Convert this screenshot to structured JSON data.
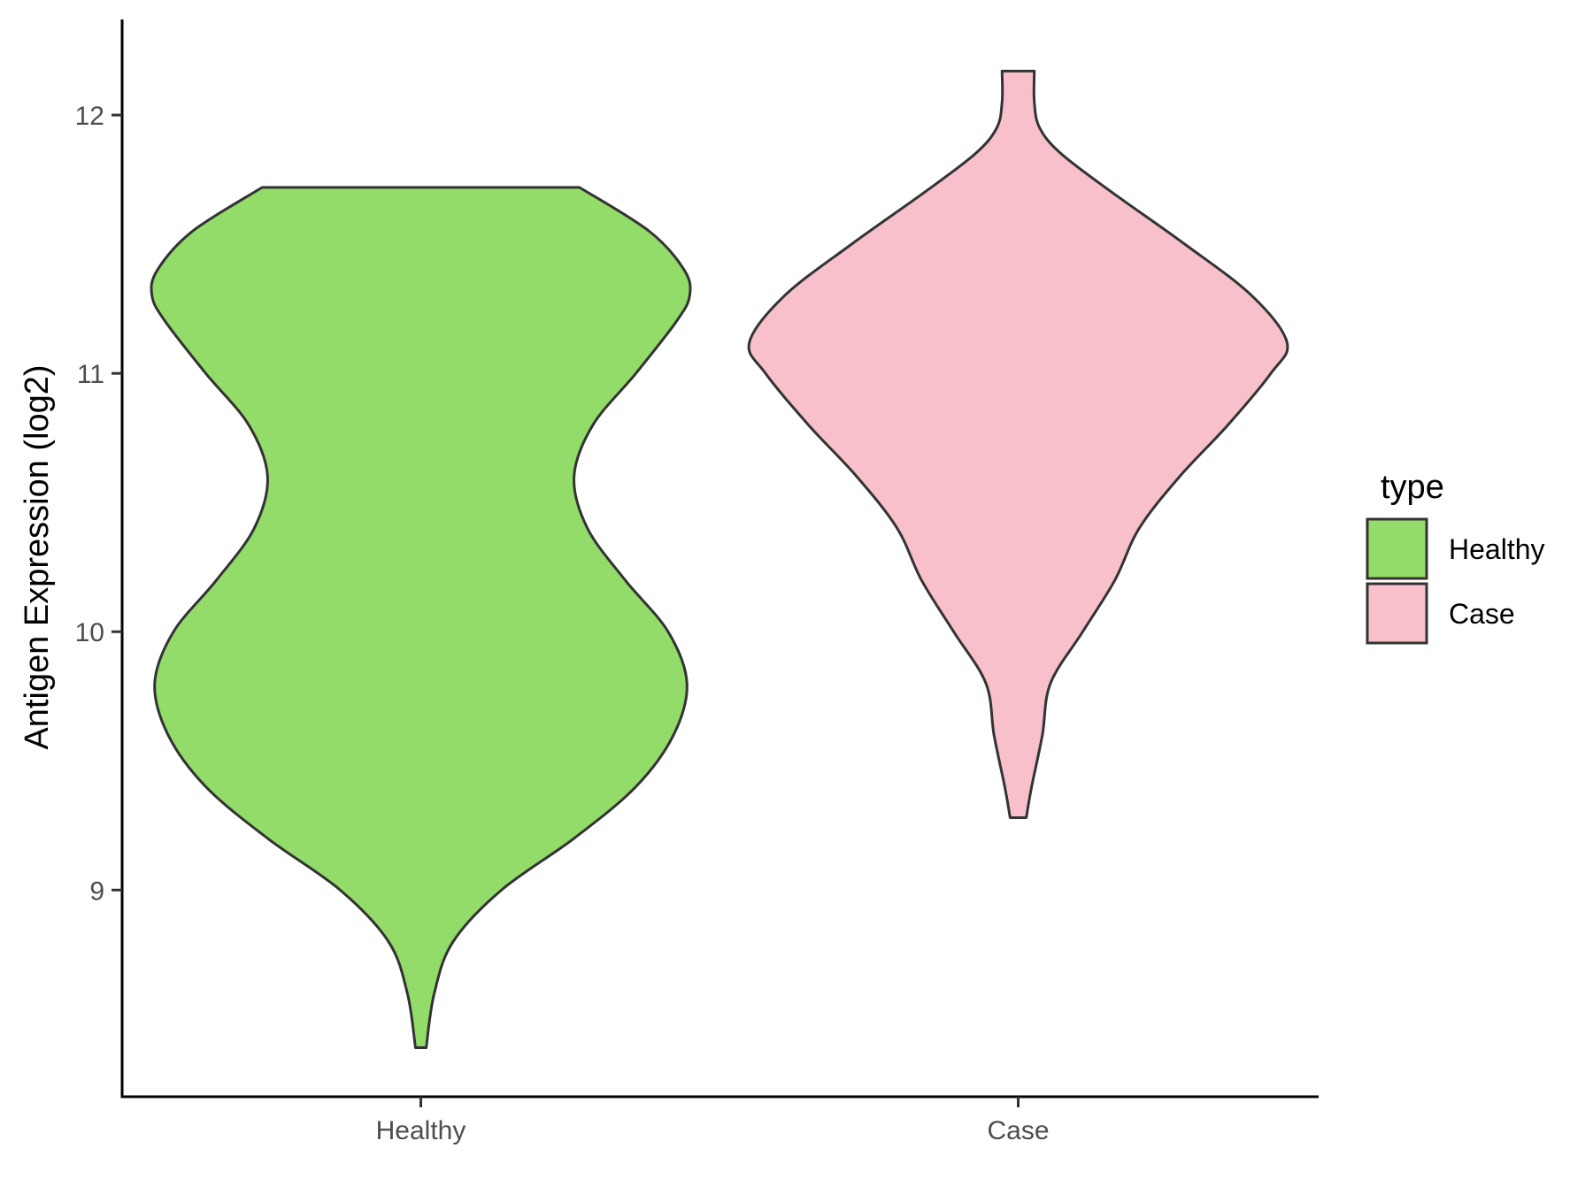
{
  "chart_data": {
    "type": "violin",
    "ylabel": "Antigen Expression (log2)",
    "xlabel": "",
    "categories": [
      "Healthy",
      "Case"
    ],
    "yticks": [
      9,
      10,
      11,
      12
    ],
    "ylim": [
      8.2,
      12.37
    ],
    "grid": false,
    "legend": {
      "title": "type",
      "position": "right",
      "entries": [
        {
          "label": "Healthy",
          "color": "#93dc6a"
        },
        {
          "label": "Case",
          "color": "#f7c0cb"
        }
      ]
    },
    "series": [
      {
        "category": "Healthy",
        "color": "#93dc6a",
        "min": 8.39,
        "max": 11.72,
        "density_profile": [
          {
            "y": 8.39,
            "w": 0.02
          },
          {
            "y": 8.6,
            "w": 0.05
          },
          {
            "y": 8.8,
            "w": 0.12
          },
          {
            "y": 9.0,
            "w": 0.3
          },
          {
            "y": 9.2,
            "w": 0.57
          },
          {
            "y": 9.4,
            "w": 0.8
          },
          {
            "y": 9.6,
            "w": 0.94
          },
          {
            "y": 9.8,
            "w": 0.99
          },
          {
            "y": 10.0,
            "w": 0.92
          },
          {
            "y": 10.2,
            "w": 0.76
          },
          {
            "y": 10.4,
            "w": 0.62
          },
          {
            "y": 10.6,
            "w": 0.57
          },
          {
            "y": 10.8,
            "w": 0.64
          },
          {
            "y": 11.0,
            "w": 0.8
          },
          {
            "y": 11.2,
            "w": 0.95
          },
          {
            "y": 11.3,
            "w": 1.0
          },
          {
            "y": 11.4,
            "w": 0.98
          },
          {
            "y": 11.55,
            "w": 0.85
          },
          {
            "y": 11.72,
            "w": 0.59
          }
        ]
      },
      {
        "category": "Case",
        "color": "#f7c0cb",
        "min": 9.28,
        "max": 12.17,
        "density_profile": [
          {
            "y": 9.28,
            "w": 0.03
          },
          {
            "y": 9.4,
            "w": 0.05
          },
          {
            "y": 9.6,
            "w": 0.09
          },
          {
            "y": 9.8,
            "w": 0.12
          },
          {
            "y": 10.0,
            "w": 0.24
          },
          {
            "y": 10.2,
            "w": 0.36
          },
          {
            "y": 10.4,
            "w": 0.45
          },
          {
            "y": 10.6,
            "w": 0.6
          },
          {
            "y": 10.8,
            "w": 0.78
          },
          {
            "y": 11.0,
            "w": 0.94
          },
          {
            "y": 11.12,
            "w": 1.0
          },
          {
            "y": 11.3,
            "w": 0.87
          },
          {
            "y": 11.5,
            "w": 0.62
          },
          {
            "y": 11.7,
            "w": 0.35
          },
          {
            "y": 11.85,
            "w": 0.16
          },
          {
            "y": 11.95,
            "w": 0.08
          },
          {
            "y": 12.05,
            "w": 0.06
          },
          {
            "y": 12.17,
            "w": 0.06
          }
        ]
      }
    ]
  }
}
